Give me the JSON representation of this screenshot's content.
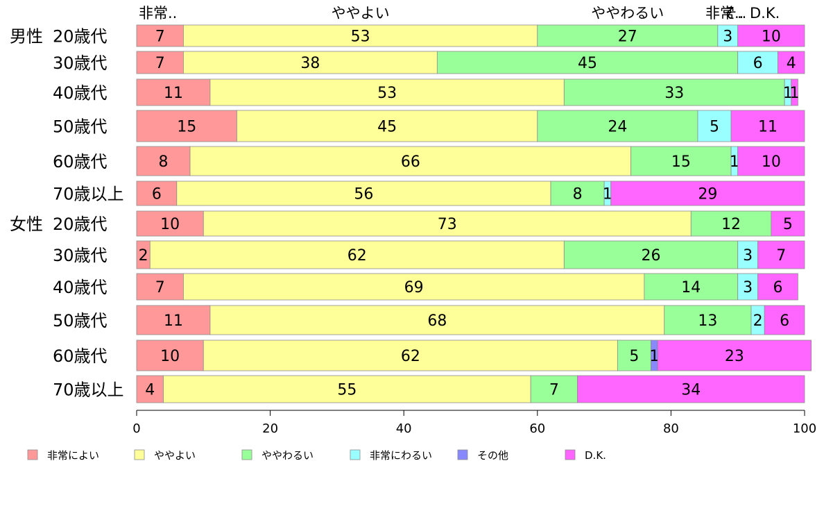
{
  "chart_data": {
    "type": "bar",
    "orientation": "horizontal",
    "stacked": true,
    "xlim": [
      0,
      100
    ],
    "x_ticks": [
      "0",
      "20",
      "40",
      "60",
      "80",
      "100"
    ],
    "legend_position": "bottom",
    "top_labels": [
      "非常..",
      "ややよい",
      "ややわるい",
      "非常..",
      "そ..",
      "D.K."
    ],
    "categories": [
      {
        "group": "男性",
        "label": "20歳代"
      },
      {
        "group": "",
        "label": "30歳代"
      },
      {
        "group": "",
        "label": "40歳代"
      },
      {
        "group": "",
        "label": "50歳代"
      },
      {
        "group": "",
        "label": "60歳代"
      },
      {
        "group": "",
        "label": "70歳以上"
      },
      {
        "group": "女性",
        "label": "20歳代"
      },
      {
        "group": "",
        "label": "30歳代"
      },
      {
        "group": "",
        "label": "40歳代"
      },
      {
        "group": "",
        "label": "50歳代"
      },
      {
        "group": "",
        "label": "60歳代"
      },
      {
        "group": "",
        "label": "70歳以上"
      }
    ],
    "series": [
      {
        "name": "非常によい",
        "color": "#ff9999",
        "values": [
          7,
          7,
          11,
          15,
          8,
          6,
          10,
          2,
          7,
          11,
          10,
          4
        ]
      },
      {
        "name": "ややよい",
        "color": "#ffff99",
        "values": [
          53,
          38,
          53,
          45,
          66,
          56,
          73,
          62,
          69,
          68,
          62,
          55
        ]
      },
      {
        "name": "ややわるい",
        "color": "#99ff99",
        "values": [
          27,
          45,
          33,
          24,
          15,
          8,
          12,
          26,
          14,
          13,
          5,
          7
        ]
      },
      {
        "name": "非常にわるい",
        "color": "#99ffff",
        "values": [
          3,
          6,
          1,
          5,
          1,
          1,
          0,
          3,
          3,
          2,
          0,
          0
        ]
      },
      {
        "name": "その他",
        "color": "#8888ff",
        "values": [
          0,
          0,
          0,
          0,
          0,
          0,
          0,
          0,
          0,
          0,
          1,
          0
        ]
      },
      {
        "name": "D.K.",
        "color": "#ff66ff",
        "values": [
          10,
          4,
          1,
          11,
          10,
          29,
          5,
          7,
          6,
          6,
          23,
          34
        ]
      }
    ]
  }
}
